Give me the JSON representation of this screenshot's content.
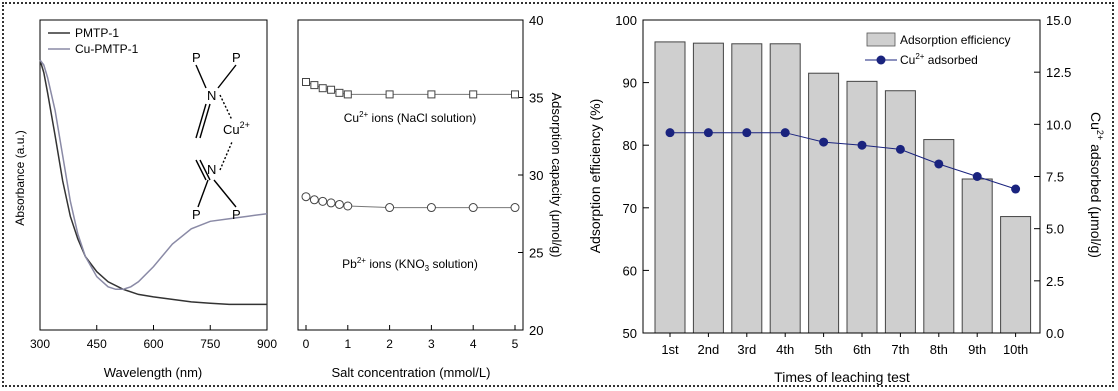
{
  "chart_data": [
    {
      "type": "line",
      "xlabel": "Wavelength (nm)",
      "ylabel": "Absorbance (a.u.)",
      "xlim": [
        300,
        900
      ],
      "xticks": [
        300,
        450,
        600,
        750,
        900
      ],
      "legend_position": "top-left",
      "series": [
        {
          "name": "PMTP-1",
          "color": "#333333",
          "x": [
            300,
            310,
            320,
            340,
            360,
            380,
            400,
            420,
            450,
            480,
            520,
            560,
            600,
            650,
            700,
            750,
            800,
            850,
            900
          ],
          "y": [
            1.0,
            0.95,
            0.87,
            0.7,
            0.52,
            0.38,
            0.29,
            0.22,
            0.16,
            0.12,
            0.09,
            0.07,
            0.06,
            0.05,
            0.04,
            0.035,
            0.03,
            0.03,
            0.03
          ]
        },
        {
          "name": "Cu-PMTP-1",
          "color": "#8a8aa6",
          "x": [
            300,
            310,
            320,
            340,
            360,
            380,
            400,
            420,
            450,
            480,
            500,
            520,
            540,
            560,
            600,
            650,
            700,
            750,
            800,
            850,
            900
          ],
          "y": [
            1.0,
            0.98,
            0.93,
            0.8,
            0.62,
            0.44,
            0.31,
            0.22,
            0.14,
            0.1,
            0.09,
            0.09,
            0.1,
            0.12,
            0.18,
            0.27,
            0.33,
            0.36,
            0.37,
            0.38,
            0.39
          ]
        }
      ],
      "inset": {
        "atoms": [
          "P",
          "P",
          "N",
          "Cu2+",
          "N",
          "P",
          "P"
        ]
      }
    },
    {
      "type": "scatter",
      "xlabel": "Salt concentration (mmol/L)",
      "ylabel": "Adsorption capacity (μmol/g)",
      "xlim": [
        0,
        5
      ],
      "ylim": [
        20,
        40
      ],
      "xticks": [
        0,
        1,
        2,
        3,
        4,
        5
      ],
      "yticks": [
        20,
        25,
        30,
        35,
        40
      ],
      "series": [
        {
          "name": "Cu2+ ions (NaCl solution)",
          "marker": "square",
          "x": [
            0,
            0.2,
            0.4,
            0.6,
            0.8,
            1,
            2,
            3,
            4,
            5
          ],
          "y": [
            36.0,
            35.8,
            35.6,
            35.5,
            35.3,
            35.2,
            35.2,
            35.2,
            35.2,
            35.2
          ]
        },
        {
          "name": "Pb2+ ions (KNO3 solution)",
          "marker": "circle",
          "x": [
            0,
            0.2,
            0.4,
            0.6,
            0.8,
            1,
            2,
            3,
            4,
            5
          ],
          "y": [
            28.6,
            28.4,
            28.3,
            28.2,
            28.1,
            28.0,
            27.9,
            27.9,
            27.9,
            27.9
          ]
        }
      ]
    },
    {
      "type": "bar",
      "xlabel": "Times of leaching test",
      "ylabel": "Adsorption efficiency (%)",
      "ylabel_right": "Cu2+ adsorbed (μmol/g)",
      "categories": [
        "1st",
        "2nd",
        "3rd",
        "4th",
        "5th",
        "6th",
        "7th",
        "8th",
        "9th",
        "10th"
      ],
      "ylim": [
        50,
        100
      ],
      "yticks": [
        50,
        60,
        70,
        80,
        90,
        100
      ],
      "y2lim": [
        0,
        15
      ],
      "y2ticks": [
        "0.0",
        "2.5",
        "5.0",
        "7.5",
        "10.0",
        "12.5",
        "15.0"
      ],
      "legend_position": "top-right",
      "series": [
        {
          "name": "Adsorption efficiency",
          "type": "bar",
          "color": "#cfcfcf",
          "values": [
            96.5,
            96.3,
            96.2,
            96.2,
            91.5,
            90.2,
            88.7,
            80.9,
            74.6,
            68.6
          ]
        },
        {
          "name": "Cu2+ adsorbed",
          "type": "line",
          "axis": "right",
          "color": "#1a237e",
          "values": [
            9.6,
            9.6,
            9.6,
            9.6,
            9.15,
            9.0,
            8.8,
            8.1,
            7.5,
            6.9
          ]
        }
      ]
    }
  ],
  "labels": {
    "p1_legend": [
      "PMTP-1",
      "Cu-PMTP-1"
    ],
    "p1_ylabel": "Absorbance (a.u.)",
    "p1_xlabel": "Wavelength (nm)",
    "p1_xticks": [
      "300",
      "450",
      "600",
      "750",
      "900"
    ],
    "p1_inset": {
      "p1": "P",
      "p2": "P",
      "n1": "N",
      "cu": "Cu",
      "cu_sup": "2+",
      "n2": "N",
      "p3": "P",
      "p4": "P"
    },
    "p2_xlabel": "Salt concentration (mmol/L)",
    "p2_ylabel": "Adsorption capacity (μmol/g)",
    "p2_xticks": [
      "0",
      "1",
      "2",
      "3",
      "4",
      "5"
    ],
    "p2_yticks": [
      "20",
      "25",
      "30",
      "35",
      "40"
    ],
    "p2_cu_label": {
      "pre": "Cu",
      "sup": "2+",
      "post": " ions (NaCl solution)"
    },
    "p2_pb_label": {
      "pre": "Pb",
      "sup": "2+",
      "mid": " ions (KNO",
      "sub": "3",
      "post": " solution)"
    },
    "p3_xlabel": "Times of leaching test",
    "p3_ylabel": "Adsorption efficiency (%)",
    "p3_ylabel_right": {
      "pre": "Cu",
      "sup": "2+",
      "post": " adsorbed (μmol/g)"
    },
    "p3_legend_bar": "Adsorption efficiency",
    "p3_legend_line": {
      "pre": "Cu",
      "sup": "2+",
      "post": " adsorbed"
    }
  }
}
